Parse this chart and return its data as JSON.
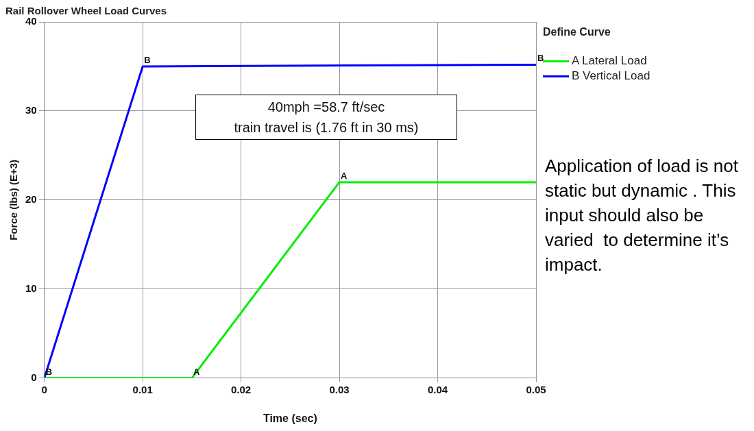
{
  "chart_data": {
    "type": "line",
    "title": "Rail Rollover Wheel Load Curves",
    "xlabel": "Time (sec)",
    "ylabel": "Force (lbs) (E+3)",
    "legend_title": "Define Curve",
    "series": [
      {
        "name": "A Lateral Load",
        "color": "#00ee00",
        "x": [
          0,
          0.015,
          0.03,
          0.05
        ],
        "values": [
          0,
          0,
          22,
          22
        ]
      },
      {
        "name": "B Vertical Load",
        "color": "#0000ff",
        "x": [
          0,
          0.01,
          0.05
        ],
        "values": [
          0,
          35,
          35.2
        ]
      }
    ],
    "xlim": [
      0,
      0.05
    ],
    "xticks": [
      0,
      0.01,
      0.02,
      0.03,
      0.04,
      0.05
    ],
    "ylim": [
      0,
      40
    ],
    "yticks": [
      0,
      10,
      20,
      30,
      40
    ],
    "grid": true,
    "legend": "top right",
    "marker": "none",
    "line_style": "solid",
    "annotations": [
      "40mph =58.7 ft/sec\ntrain travel is (1.76 ft in 30 ms)",
      "Application of load is not static but dynamic . This input should also be varied  to determine it’s impact.",
      {
        "text": "A",
        "x": 0.015,
        "y": 0
      },
      {
        "text": "A",
        "x": 0.03,
        "y": 22
      },
      {
        "text": "B",
        "x": 0,
        "y": 0
      },
      {
        "text": "B",
        "x": 0.01,
        "y": 35
      },
      {
        "text": "B",
        "x": 0.05,
        "y": 35.2
      }
    ]
  }
}
